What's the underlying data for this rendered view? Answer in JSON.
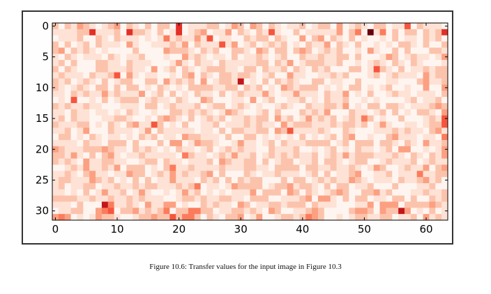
{
  "caption": "Figure 10.6: Transfer values for the input image in Figure 10.3",
  "chart_data": {
    "type": "heatmap",
    "title": "",
    "xlabel": "",
    "ylabel": "",
    "rows": 32,
    "cols": 64,
    "xlim": [
      -0.5,
      63.5
    ],
    "ylim": [
      31.5,
      -0.5
    ],
    "x_ticks": [
      0,
      10,
      20,
      30,
      40,
      50,
      60
    ],
    "x_tick_labels": [
      "0",
      "10",
      "20",
      "30",
      "40",
      "50",
      "60"
    ],
    "y_ticks": [
      0,
      5,
      10,
      15,
      20,
      25,
      30
    ],
    "y_tick_labels": [
      "0",
      "5",
      "10",
      "15",
      "20",
      "25",
      "30"
    ],
    "colormap": "Reds",
    "value_range": [
      0,
      1
    ],
    "encoding": "each row is a string of 64 digits 0-9; cell value = digit / 9",
    "values": [
      "2021321012302102022060111220132032021011201220301210220115021110",
      "1111226111206221020160123011302102151002011111302409140202202126",
      "0111200210211101014121131501100212202100302302102010010201102120",
      "2020120211103100111213021115130120121201021130210200101022102002",
      "2302121010000200003222102120022103202202320121200103100202000221",
      "1021011102101120001003121011020112101200211211220200013201211013",
      "1202000221102111000131021102111112202130122211200101210210210001",
      "2021000221112110301202101222110220211202102120002201521020112122",
      "1211102112503101100102302102212210120031100112120001201211103122",
      "2120121020122002203121203012217010202121002201100200001100023112",
      "2101210220202201021010222211220212010321222010102201012001003003",
      "1102121131211130120201021102012111310113111021130102001211011102",
      "0105001020122201211021003200011030120011201021120010100001201120",
      "2121121100011102201211120122012101001210021122130102202210111232",
      "1102110110102100100221212101321001202000212130002110120201022103",
      "1202110011221001023210201212011212203120131212012142010020001215",
      "2111220102102311520102001120111212110312221112122120131001101225",
      "1120130002111013021111101102022112203251111210021000111212110231",
      "0220102101101021201103221110200220101010201012023001002311101104",
      "1111021102220200020330132210013110120211122220120222022102103112",
      "3211122232110212101021101201212110021112001012010211012033001013",
      "2213102023101121111104211012131120121212112012131222111210210213",
      "2121031122110012202110111203211220201220112022101220012111201211",
      "0012131121302220102411211112111221102222022112112101320012113023",
      "1121023110113220121312112302000210112111012020112300112011141122",
      "1221113212010202011311102120202122000202201212113210111021123120",
      "1201122011211212211121240110132222012231221020220112000200011200",
      "1101020131120131001013120101011130222032021012320022312000112112",
      "2222112112112121110012212112211022200111230331020220110220200212",
      "1110200074112103113301002121103201122122202111000113033302222321",
      "0112200345022312124022442201122121032001123200002332032273010201",
      "3430101322100122322524420210223013001221243200101221122011203121"
    ]
  }
}
